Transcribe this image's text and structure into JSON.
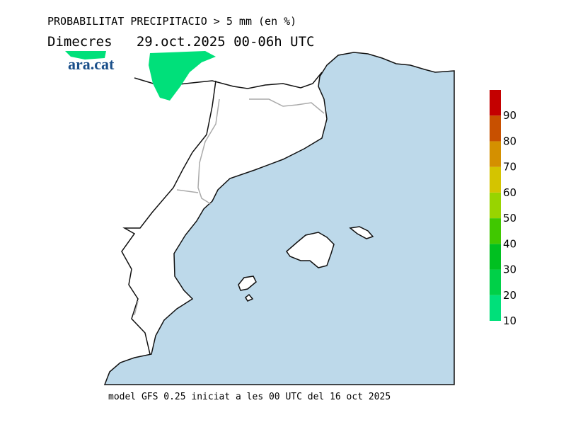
{
  "header": {
    "title": "PROBABILITAT PRECIPITACIO > 5 mm (en %)",
    "subtitle": "Dimecres   29.oct.2025 00-06h UTC"
  },
  "logo": "ara.cat",
  "footer": "model GFS 0.25 iniciat a les 00 UTC del 16 oct 2025",
  "colorbar": {
    "lim": [
      10,
      100
    ],
    "ticks": [
      10,
      20,
      30,
      40,
      50,
      60,
      70,
      80,
      90
    ],
    "bands": [
      [
        10,
        20
      ],
      [
        20,
        30
      ],
      [
        30,
        40
      ],
      [
        40,
        50
      ],
      [
        50,
        60
      ],
      [
        60,
        70
      ],
      [
        70,
        80
      ],
      [
        80,
        90
      ],
      [
        90,
        100
      ]
    ],
    "colors": [
      "#00e07a",
      "#00d048",
      "#00c020",
      "#40c800",
      "#98d400",
      "#d4c400",
      "#d49000",
      "#c85000",
      "#c40000"
    ]
  }
}
